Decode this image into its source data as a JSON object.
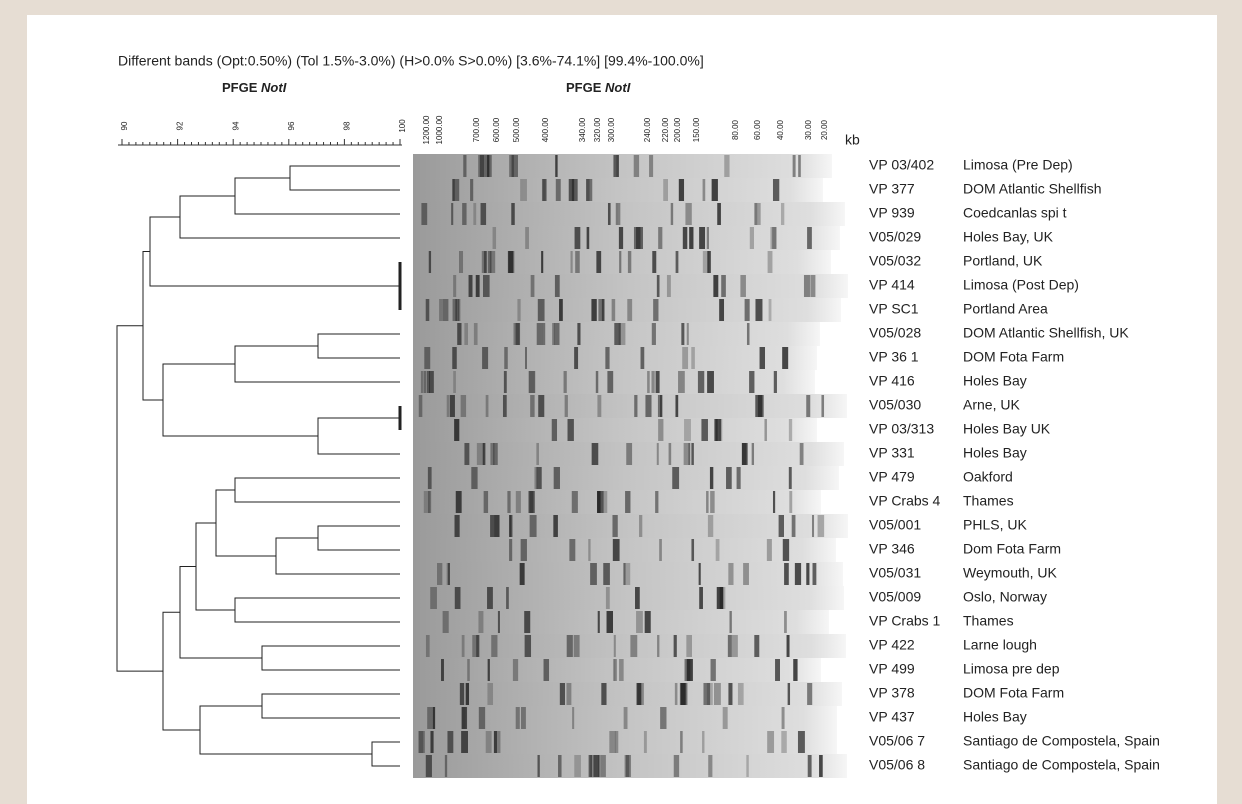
{
  "header": {
    "text": "Different bands  (Opt:0.50%) (Tol 1.5%-3.0%) (H>0.0% S>0.0%)  [3.6%-74.1%] [99.4%-100.0%]"
  },
  "left_title": {
    "prefix": "PFGE",
    "italic": "NotI"
  },
  "gel_title": {
    "prefix": "PFGE",
    "italic": "NotI"
  },
  "similarity_axis": {
    "ticks": [
      90,
      92,
      94,
      96,
      98,
      100
    ]
  },
  "kb_axis": {
    "unit": "kb",
    "labels": [
      "1200.00",
      "1000.00",
      "700.00",
      "600.00",
      "500.00",
      "400.00",
      "340.00",
      "320.00",
      "300.00",
      "240.00",
      "220.00",
      "200.00",
      "150.00",
      "80.00",
      "60.00",
      "40.00",
      "30.00",
      "20.00"
    ]
  },
  "rows": [
    [
      "VP 03/402",
      "Limosa (Pre Dep)"
    ],
    [
      "VP 377",
      "DOM Atlantic Shellfish"
    ],
    [
      "VP 939",
      "Coedcanlas spi t"
    ],
    [
      "V05/029",
      "Holes Bay, UK"
    ],
    [
      "V05/032",
      "Portland, UK"
    ],
    [
      "VP 414",
      "Limosa (Post Dep)"
    ],
    [
      "VP SC1",
      "Portland Area"
    ],
    [
      "V05/028",
      "DOM Atlantic Shellfish, UK"
    ],
    [
      "VP 36 1",
      "DOM Fota Farm"
    ],
    [
      "VP 416",
      "Holes Bay"
    ],
    [
      "V05/030",
      "Arne, UK"
    ],
    [
      "VP 03/313",
      "Holes Bay UK"
    ],
    [
      "VP 331",
      "Holes Bay"
    ],
    [
      "VP 479",
      "Oakford"
    ],
    [
      "VP Crabs  4",
      "Thames"
    ],
    [
      "V05/001",
      "PHLS, UK"
    ],
    [
      "VP 346",
      "Dom Fota Farm"
    ],
    [
      "V05/031",
      "Weymouth, UK"
    ],
    [
      "V05/009",
      "Oslo, Norway"
    ],
    [
      "VP Crabs  1",
      "Thames"
    ],
    [
      "VP 422",
      "Larne lough"
    ],
    [
      "VP 499",
      "Limosa pre dep"
    ],
    [
      "VP 378",
      "DOM Fota Farm"
    ],
    [
      "VP 437",
      "Holes Bay"
    ],
    [
      "V05/06 7",
      "Santiago de Compostela, Spain"
    ],
    [
      "V05/06 8",
      "Santiago de Compostela, Spain"
    ]
  ]
}
